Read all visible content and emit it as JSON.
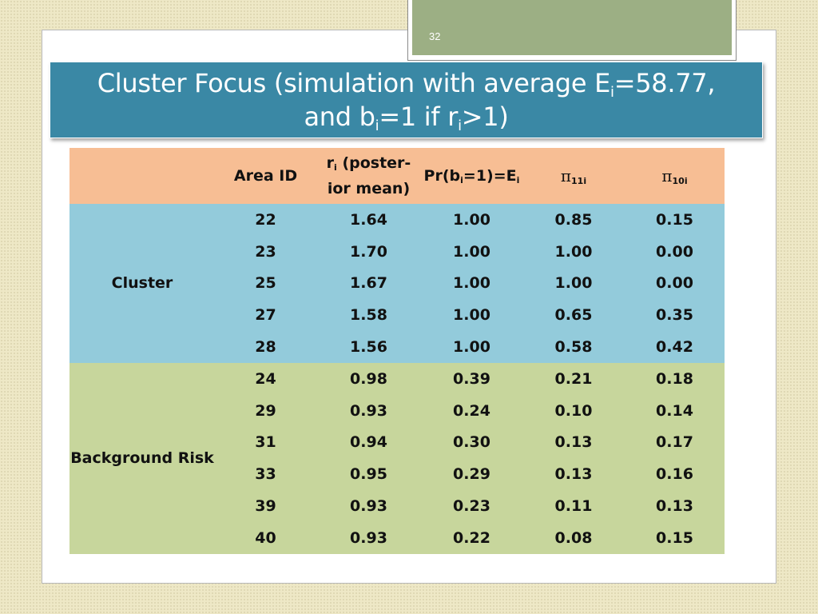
{
  "slide_number": "32",
  "title": {
    "line1_part1": "Cluster Focus (simulation with average E",
    "line1_sub": "i",
    "line1_part2": "=58.77,",
    "line2_part1": "and b",
    "line2_sub1": "i",
    "line2_part2": "=1 if r",
    "line2_sub2": "i",
    "line2_part3": ">1)"
  },
  "table": {
    "headers": {
      "area_id": "Area ID",
      "ri_main": "r",
      "ri_sub": "i",
      "ri_line1_rest": " (poster-",
      "ri_line2": "ior mean)",
      "pr_part1": "Pr(b",
      "pr_sub1": "i",
      "pr_part2": "=1)=E",
      "pr_sub2": "i",
      "pi11_symbol": "π",
      "pi11_sub": "11i",
      "pi10_symbol": "π",
      "pi10_sub": "10i"
    },
    "groups": [
      {
        "label": "Cluster",
        "rows": [
          {
            "area": "22",
            "ri": "1.64",
            "pr": "1.00",
            "pi11": "0.85",
            "pi10": "0.15"
          },
          {
            "area": "23",
            "ri": "1.70",
            "pr": "1.00",
            "pi11": "1.00",
            "pi10": "0.00"
          },
          {
            "area": "25",
            "ri": "1.67",
            "pr": "1.00",
            "pi11": "1.00",
            "pi10": "0.00"
          },
          {
            "area": "27",
            "ri": "1.58",
            "pr": "1.00",
            "pi11": "0.65",
            "pi10": "0.35"
          },
          {
            "area": "28",
            "ri": "1.56",
            "pr": "1.00",
            "pi11": "0.58",
            "pi10": "0.42"
          }
        ]
      },
      {
        "label": "Background Risk",
        "rows": [
          {
            "area": "24",
            "ri": "0.98",
            "pr": "0.39",
            "pi11": "0.21",
            "pi10": "0.18"
          },
          {
            "area": "29",
            "ri": "0.93",
            "pr": "0.24",
            "pi11": "0.10",
            "pi10": "0.14"
          },
          {
            "area": "31",
            "ri": "0.94",
            "pr": "0.30",
            "pi11": "0.13",
            "pi10": "0.17"
          },
          {
            "area": "33",
            "ri": "0.95",
            "pr": "0.29",
            "pi11": "0.13",
            "pi10": "0.16"
          },
          {
            "area": "39",
            "ri": "0.93",
            "pr": "0.23",
            "pi11": "0.11",
            "pi10": "0.13"
          },
          {
            "area": "40",
            "ri": "0.93",
            "pr": "0.22",
            "pi11": "0.08",
            "pi10": "0.15"
          }
        ]
      }
    ]
  }
}
